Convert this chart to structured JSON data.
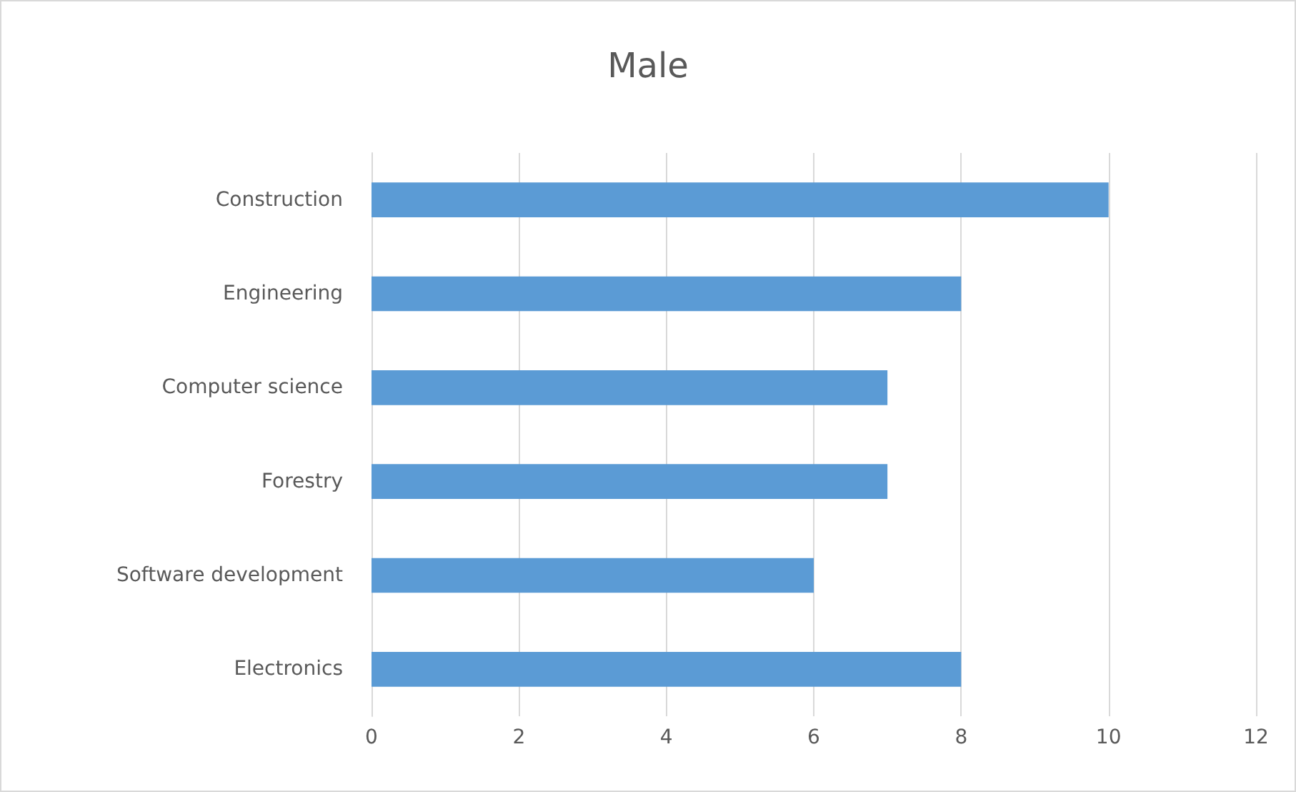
{
  "chart_data": {
    "type": "bar",
    "title": "Male",
    "orientation": "horizontal",
    "categories": [
      "Construction",
      "Engineering",
      "Computer science",
      "Forestry",
      "Software development",
      "Electronics"
    ],
    "values": [
      10,
      8,
      7,
      7,
      6,
      8
    ],
    "color": "#5b9bd5",
    "xlim": [
      0,
      12
    ],
    "xticks": [
      0,
      2,
      4,
      6,
      8,
      10,
      12
    ],
    "grid": "x"
  }
}
